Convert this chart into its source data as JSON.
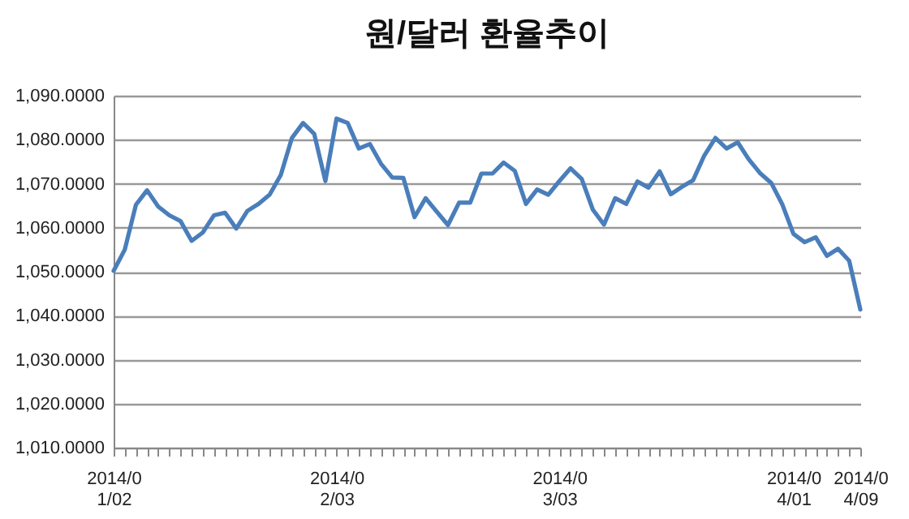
{
  "chart_data": {
    "type": "line",
    "title": "원/달러 환율추이",
    "categories": [
      "2014/01/02",
      null,
      null,
      null,
      null,
      null,
      null,
      null,
      null,
      null,
      null,
      null,
      null,
      null,
      null,
      null,
      null,
      null,
      null,
      null,
      "2014/02/03",
      null,
      null,
      null,
      null,
      null,
      null,
      null,
      null,
      null,
      null,
      null,
      null,
      null,
      null,
      null,
      null,
      null,
      null,
      null,
      "2014/03/03",
      null,
      null,
      null,
      null,
      null,
      null,
      null,
      null,
      null,
      null,
      null,
      null,
      null,
      null,
      null,
      null,
      null,
      null,
      null,
      null,
      "2014/04/01",
      null,
      null,
      null,
      null,
      null,
      "2014/04/09"
    ],
    "series": [
      {
        "color": "#4a7ebb",
        "values": [
          1050.2,
          1055,
          1065.2,
          1068.5,
          1064.8,
          1062.8,
          1061.5,
          1057,
          1058.9,
          1062.8,
          1063.4,
          1059.8,
          1063.8,
          1065.4,
          1067.5,
          1072,
          1080.4,
          1083.8,
          1081.3,
          1070.6,
          1084.8,
          1083.8,
          1078,
          1079,
          1074.5,
          1071.4,
          1071.3,
          1062.4,
          1066.7,
          1063.6,
          1060.6,
          1065.7,
          1065.7,
          1072.3,
          1072.3,
          1074.8,
          1072.9,
          1065.4,
          1068.7,
          1067.5,
          1070.6,
          1073.5,
          1071.1,
          1064.1,
          1060.7,
          1066.7,
          1065.4,
          1070.5,
          1069.1,
          1072.8,
          1067.6,
          1069.3,
          1070.8,
          1076.4,
          1080.4,
          1078,
          1079.4,
          1075.5,
          1072.4,
          1070.2,
          1065.3,
          1058.6,
          1056.7,
          1057.8,
          1053.6,
          1055.2,
          1052.5,
          1041.4
        ]
      }
    ],
    "ylim": [
      1010,
      1090
    ],
    "yticks": [
      {
        "value": 1010,
        "label": "1,010.0000"
      },
      {
        "value": 1020,
        "label": "1,020.0000"
      },
      {
        "value": 1030,
        "label": "1,030.0000"
      },
      {
        "value": 1040,
        "label": "1,040.0000"
      },
      {
        "value": 1050,
        "label": "1,050.0000"
      },
      {
        "value": 1060,
        "label": "1,060.0000"
      },
      {
        "value": 1070,
        "label": "1,070.0000"
      },
      {
        "value": 1080,
        "label": "1,080.0000"
      },
      {
        "value": 1090,
        "label": "1,090.0000"
      }
    ],
    "grid": "y",
    "marker": "none",
    "line_style": "solid"
  }
}
